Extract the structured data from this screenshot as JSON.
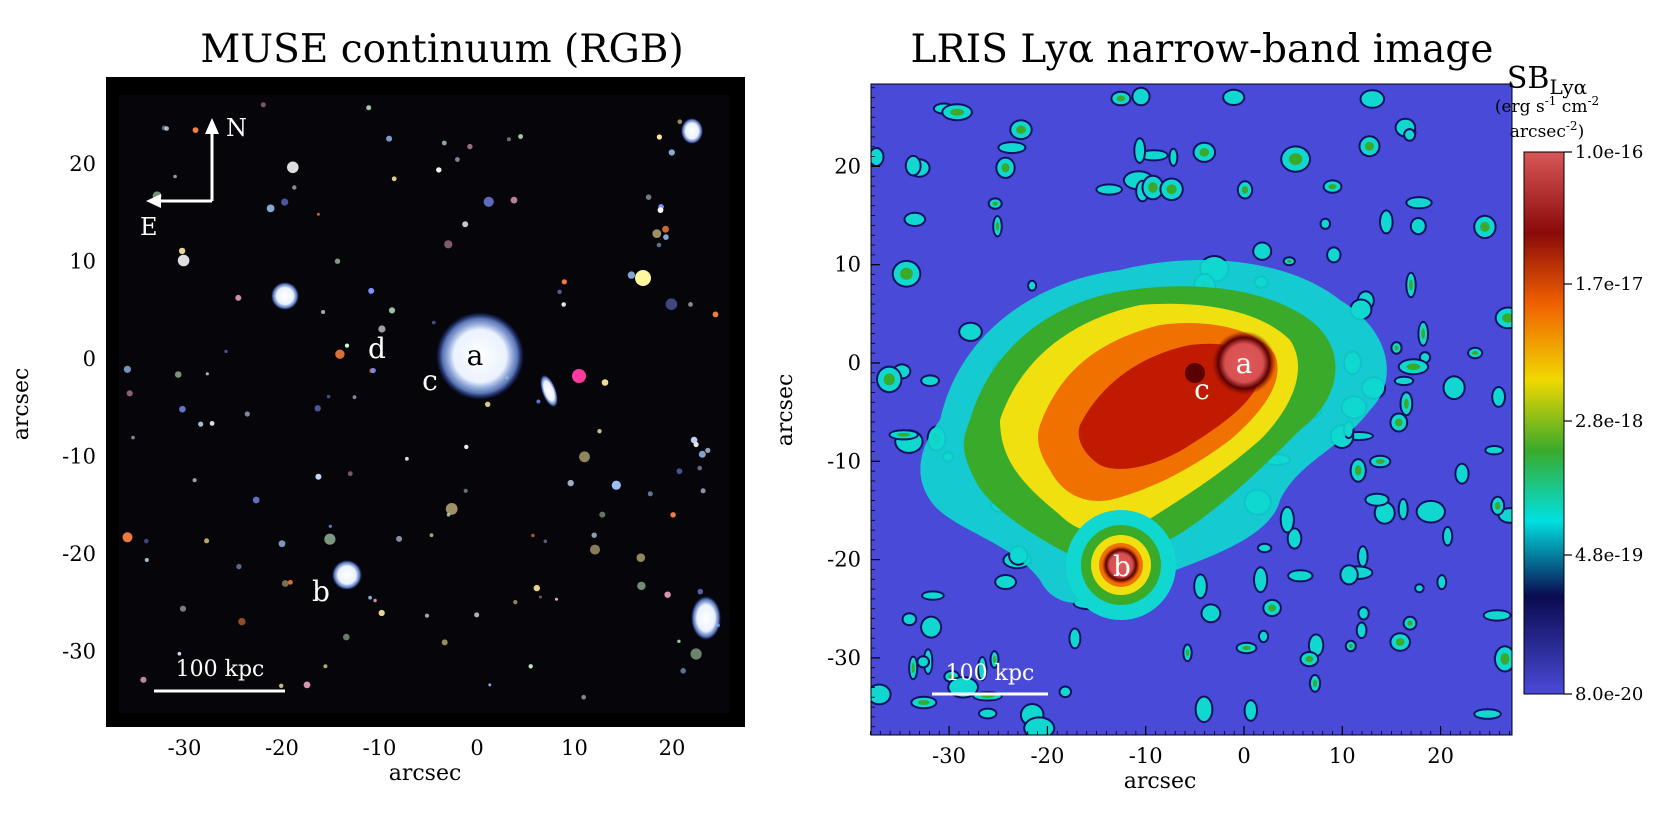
{
  "left_panel": {
    "title": "MUSE continuum (RGB)",
    "xlabel": "arcsec",
    "ylabel": "arcsec",
    "x_ticks": [
      "-30",
      "-20",
      "-10",
      "0",
      "10",
      "20"
    ],
    "y_ticks": [
      "20",
      "10",
      "0",
      "-10",
      "-20",
      "-30"
    ],
    "labels": {
      "a": "a",
      "b": "b",
      "c": "c",
      "d": "d"
    },
    "compass": {
      "north": "N",
      "east": "E"
    },
    "scale_bar": "100 kpc"
  },
  "right_panel": {
    "title": "LRIS Lyα narrow-band image",
    "xlabel": "arcsec",
    "ylabel": "arcsec",
    "x_ticks": [
      "-30",
      "-20",
      "-10",
      "0",
      "10",
      "20"
    ],
    "y_ticks": [
      "20",
      "10",
      "0",
      "-10",
      "-20",
      "-30"
    ],
    "labels": {
      "a": "a",
      "b": "b",
      "c": "c"
    },
    "scale_bar": "100 kpc"
  },
  "colorbar": {
    "title_main": "SB",
    "title_sub": "Lyα",
    "unit_line1": "(erg s",
    "unit_line1_sup1": "-1",
    "unit_line1_mid": " cm",
    "unit_line1_sup2": "-2",
    "unit_line2": "arcsec",
    "unit_line2_sup": "-2",
    "unit_line2_end": ")",
    "tick_labels": [
      "1.0e-16",
      "1.7e-17",
      "2.8e-18",
      "4.8e-19",
      "8.0e-20"
    ],
    "colors": [
      "#d14a4a",
      "#7a0a0a",
      "#f06a00",
      "#f0e000",
      "#2aa02a",
      "#00e0e0",
      "#101060",
      "#4a4ad8"
    ]
  },
  "colors": {
    "muse_background": "#05050a",
    "muse_frame": "#000000",
    "lya_background": "#4a4ad8"
  }
}
